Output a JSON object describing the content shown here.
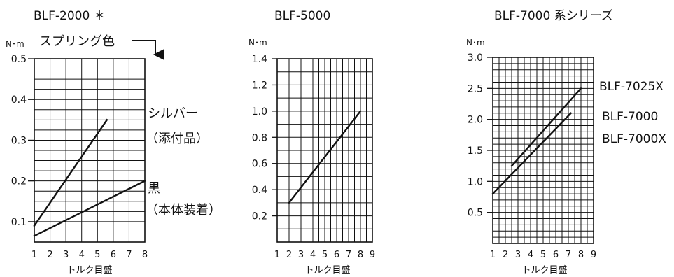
{
  "chart_data": [
    {
      "type": "line",
      "title": "BLF-2000 ＊",
      "ylabel": "N･m",
      "xlabel": "トルク目盛",
      "xlim": [
        1,
        8
      ],
      "ylim": [
        0.05,
        0.5
      ],
      "x_ticks": [
        "1",
        "2",
        "3",
        "4",
        "5",
        "6",
        "7",
        "8"
      ],
      "y_ticks": [
        {
          "value": 0.5,
          "label": "0.5"
        },
        {
          "value": 0.4,
          "label": "0.4"
        },
        {
          "value": 0.3,
          "label": "0.3"
        },
        {
          "value": 0.2,
          "label": "0.2"
        },
        {
          "value": 0.1,
          "label": "0.1"
        }
      ],
      "annotation": "スプリング色",
      "series": [
        {
          "name": "シルバー",
          "name2": "（添付品）",
          "x": [
            1,
            5.6
          ],
          "y": [
            0.09,
            0.35
          ]
        },
        {
          "name": "黒",
          "name2": "（本体装着）",
          "x": [
            1,
            8
          ],
          "y": [
            0.065,
            0.2
          ]
        }
      ]
    },
    {
      "type": "line",
      "title": "BLF-5000",
      "ylabel": "N･m",
      "xlabel": "トルク目盛",
      "xlim": [
        1,
        9
      ],
      "ylim": [
        0,
        1.4
      ],
      "x_ticks": [
        "1",
        "2",
        "3",
        "4",
        "5",
        "6",
        "7",
        "8",
        "9"
      ],
      "y_ticks": [
        {
          "value": 1.4,
          "label": "1.4"
        },
        {
          "value": 1.2,
          "label": "1.2"
        },
        {
          "value": 1.0,
          "label": "1.0"
        },
        {
          "value": 0.8,
          "label": "0.8"
        },
        {
          "value": 0.6,
          "label": "0.6"
        },
        {
          "value": 0.4,
          "label": "0.4"
        },
        {
          "value": 0.2,
          "label": "0.2"
        }
      ],
      "series": [
        {
          "x": [
            2,
            8
          ],
          "y": [
            0.3,
            1.0
          ]
        }
      ]
    },
    {
      "type": "line",
      "title": "BLF-7000 系シリーズ",
      "ylabel": "N･m",
      "xlabel": "トルク目盛",
      "xlim": [
        1,
        9
      ],
      "ylim": [
        0,
        3.0
      ],
      "x_ticks": [
        "1",
        "2",
        "3",
        "4",
        "5",
        "6",
        "7",
        "8",
        "9"
      ],
      "y_ticks": [
        {
          "value": 3.0,
          "label": "3.0"
        },
        {
          "value": 2.5,
          "label": "2.5"
        },
        {
          "value": 2.0,
          "label": "2.0"
        },
        {
          "value": 1.5,
          "label": "1.5"
        },
        {
          "value": 1.0,
          "label": "1.0"
        },
        {
          "value": 0.5,
          "label": "0.5"
        }
      ],
      "series": [
        {
          "name": "BLF-7025X",
          "x": [
            2.5,
            8
          ],
          "y": [
            1.25,
            2.5
          ]
        },
        {
          "name": "BLF-7000",
          "name2": "BLF-7000X",
          "x": [
            1,
            7.2
          ],
          "y": [
            0.8,
            2.1
          ]
        }
      ]
    }
  ]
}
